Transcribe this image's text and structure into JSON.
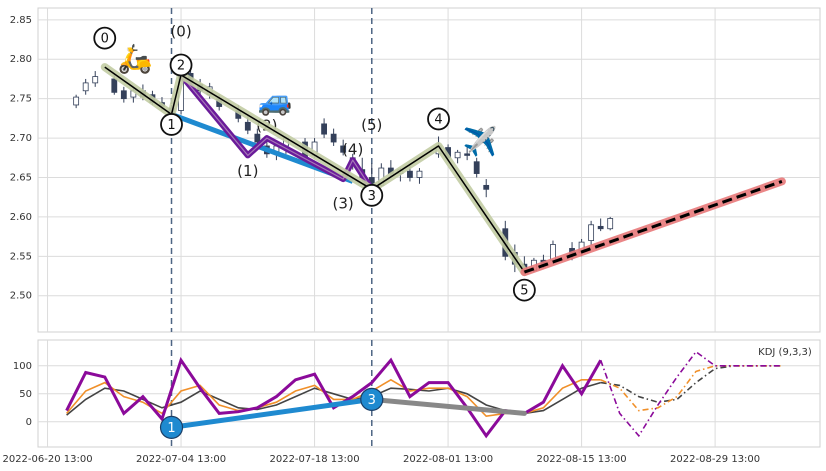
{
  "chart_data": [
    {
      "type": "candlestick",
      "x": [
        "2022-06-23",
        "2022-06-24",
        "2022-06-25",
        "2022-06-27",
        "2022-06-28",
        "2022-06-29",
        "2022-06-30",
        "2022-07-01",
        "2022-07-02",
        "2022-07-03",
        "2022-07-04",
        "2022-07-05",
        "2022-07-06",
        "2022-07-07",
        "2022-07-08",
        "2022-07-10",
        "2022-07-11",
        "2022-07-12",
        "2022-07-13",
        "2022-07-14",
        "2022-07-15",
        "2022-07-17",
        "2022-07-18",
        "2022-07-19",
        "2022-07-20",
        "2022-07-21",
        "2022-07-22",
        "2022-07-23",
        "2022-07-24",
        "2022-07-25",
        "2022-07-26",
        "2022-07-27",
        "2022-07-28",
        "2022-07-29",
        "2022-07-31",
        "2022-08-01",
        "2022-08-02",
        "2022-08-03",
        "2022-08-04",
        "2022-08-05",
        "2022-08-07",
        "2022-08-08",
        "2022-08-09",
        "2022-08-10",
        "2022-08-11",
        "2022-08-12",
        "2022-08-14",
        "2022-08-15",
        "2022-08-16",
        "2022-08-17",
        "2022-08-18"
      ],
      "open": [
        2.742,
        2.76,
        2.77,
        2.775,
        2.76,
        2.752,
        2.76,
        2.755,
        2.745,
        2.738,
        2.735,
        2.782,
        2.768,
        2.755,
        2.75,
        2.735,
        2.72,
        2.705,
        2.69,
        2.68,
        2.69,
        2.695,
        2.678,
        2.718,
        2.705,
        2.69,
        2.675,
        2.66,
        2.65,
        2.64,
        2.662,
        2.655,
        2.658,
        2.65,
        2.68,
        2.688,
        2.675,
        2.68,
        2.67,
        2.64,
        2.585,
        2.555,
        2.54,
        2.532,
        2.545,
        2.545,
        2.56,
        2.555,
        2.57,
        2.588,
        2.585
      ],
      "high": [
        2.755,
        2.775,
        2.785,
        2.782,
        2.765,
        2.765,
        2.768,
        2.76,
        2.752,
        2.742,
        2.795,
        2.79,
        2.775,
        2.77,
        2.755,
        2.742,
        2.728,
        2.712,
        2.7,
        2.695,
        2.702,
        2.7,
        2.7,
        2.725,
        2.712,
        2.698,
        2.68,
        2.675,
        2.668,
        2.668,
        2.672,
        2.662,
        2.665,
        2.662,
        2.702,
        2.692,
        2.685,
        2.69,
        2.675,
        2.648,
        2.595,
        2.565,
        2.55,
        2.548,
        2.552,
        2.57,
        2.568,
        2.572,
        2.595,
        2.598,
        2.6
      ],
      "low": [
        2.738,
        2.755,
        2.765,
        2.755,
        2.745,
        2.745,
        2.748,
        2.742,
        2.735,
        2.725,
        2.73,
        2.765,
        2.755,
        2.75,
        2.735,
        2.72,
        2.705,
        2.69,
        2.675,
        2.672,
        2.68,
        2.672,
        2.675,
        2.7,
        2.69,
        2.678,
        2.66,
        2.645,
        2.632,
        2.638,
        2.65,
        2.645,
        2.645,
        2.642,
        2.675,
        2.672,
        2.668,
        2.672,
        2.65,
        2.625,
        2.545,
        2.53,
        2.525,
        2.53,
        2.535,
        2.54,
        2.545,
        2.55,
        2.565,
        2.582,
        2.583
      ],
      "close": [
        2.752,
        2.77,
        2.778,
        2.758,
        2.75,
        2.76,
        2.752,
        2.745,
        2.74,
        2.73,
        2.785,
        2.77,
        2.76,
        2.765,
        2.74,
        2.725,
        2.71,
        2.695,
        2.68,
        2.69,
        2.7,
        2.675,
        2.695,
        2.705,
        2.695,
        2.682,
        2.665,
        2.65,
        2.64,
        2.662,
        2.655,
        2.66,
        2.65,
        2.658,
        2.69,
        2.675,
        2.682,
        2.678,
        2.655,
        2.635,
        2.55,
        2.54,
        2.532,
        2.545,
        2.54,
        2.565,
        2.552,
        2.568,
        2.59,
        2.585,
        2.598
      ],
      "up_color": "#ffffff",
      "down_color": "#34405a",
      "xlim": [
        "2022-06-19 13:00",
        "2022-09-09 13:00"
      ],
      "ylim": [
        2.454,
        2.865
      ],
      "yticks": [
        {
          "value": 2.5,
          "label": "2.50"
        },
        2.55,
        {
          "value": 2.6,
          "label": "2.60"
        },
        2.65,
        {
          "value": 2.7,
          "label": "2.70"
        },
        2.75,
        {
          "value": 2.8,
          "label": "2.80"
        },
        2.85
      ],
      "grid": true,
      "vlines": [
        "2022-07-03",
        "2022-07-24"
      ],
      "waves": [
        {
          "color": "#1f8ad0",
          "x": [
            "2022-07-03",
            "2022-07-22"
          ],
          "values": [
            2.73,
            2.645
          ]
        },
        {
          "color": "#6a1b9a",
          "x": [
            "2022-07-04",
            "2022-07-11",
            "2022-07-13",
            "2022-07-21",
            "2022-07-22",
            "2022-07-24"
          ],
          "values": [
            2.78,
            2.678,
            2.7,
            2.648,
            2.672,
            2.635
          ],
          "labels": [
            "(0)",
            "(1)",
            "(2)",
            "(3)",
            "(4)",
            "(5)"
          ]
        },
        {
          "color": "#000000",
          "glow": "#c2cca3",
          "x": [
            "2022-06-26",
            "2022-07-03",
            "2022-07-04",
            "2022-07-24",
            "2022-07-31",
            "2022-08-09"
          ],
          "values": [
            2.79,
            2.73,
            2.78,
            2.635,
            2.69,
            2.53
          ],
          "labels": [
            "0",
            "1",
            "2",
            "3",
            "4",
            "5"
          ]
        },
        {
          "color": "#000000",
          "glow": "#e8797a",
          "dashed": true,
          "x": [
            "2022-08-09",
            "2022-09-05"
          ],
          "values": [
            2.53,
            2.645
          ]
        }
      ],
      "icons": [
        "🛵",
        "🚙",
        "✈️"
      ]
    },
    {
      "type": "line",
      "annotation": "KDJ (9,3,3)",
      "xlim": [
        "2022-06-19 13:00",
        "2022-09-09 13:00"
      ],
      "xticks": [
        "2022-06-20 13:00",
        "2022-07-04 13:00",
        "2022-07-18 13:00",
        "2022-08-01 13:00",
        "2022-08-15 13:00",
        "2022-08-29 13:00"
      ],
      "ylim": [
        -45,
        146
      ],
      "yticks": [
        0,
        50,
        100
      ],
      "grid": true,
      "vlines": [
        "2022-07-03",
        "2022-07-24"
      ],
      "series": [
        {
          "color": "#444444",
          "style": "solid",
          "x": [
            "2022-06-22",
            "2022-06-24",
            "2022-06-26",
            "2022-06-28",
            "2022-06-30",
            "2022-07-02",
            "2022-07-04",
            "2022-07-06",
            "2022-07-08",
            "2022-07-10",
            "2022-07-12",
            "2022-07-14",
            "2022-07-16",
            "2022-07-18",
            "2022-07-20",
            "2022-07-22",
            "2022-07-24",
            "2022-07-26",
            "2022-07-28",
            "2022-07-30",
            "2022-08-01",
            "2022-08-03",
            "2022-08-05",
            "2022-08-07",
            "2022-08-09",
            "2022-08-11",
            "2022-08-13",
            "2022-08-15",
            "2022-08-17"
          ],
          "values": [
            12,
            40,
            60,
            55,
            40,
            25,
            35,
            55,
            40,
            25,
            22,
            30,
            45,
            60,
            50,
            40,
            45,
            60,
            58,
            55,
            60,
            50,
            30,
            20,
            15,
            20,
            40,
            60,
            70
          ]
        },
        {
          "color": "#f0902a",
          "style": "solid",
          "x": [
            "2022-06-22",
            "2022-06-24",
            "2022-06-26",
            "2022-06-28",
            "2022-06-30",
            "2022-07-02",
            "2022-07-04",
            "2022-07-06",
            "2022-07-08",
            "2022-07-10",
            "2022-07-12",
            "2022-07-14",
            "2022-07-16",
            "2022-07-18",
            "2022-07-20",
            "2022-07-22",
            "2022-07-24",
            "2022-07-26",
            "2022-07-28",
            "2022-07-30",
            "2022-08-01",
            "2022-08-03",
            "2022-08-05",
            "2022-08-07",
            "2022-08-09",
            "2022-08-11",
            "2022-08-13",
            "2022-08-15",
            "2022-08-17"
          ],
          "values": [
            15,
            55,
            70,
            45,
            35,
            15,
            55,
            65,
            30,
            20,
            25,
            35,
            55,
            65,
            40,
            40,
            55,
            75,
            55,
            60,
            60,
            45,
            10,
            15,
            15,
            25,
            60,
            75,
            75
          ]
        },
        {
          "color": "#8b0a9a",
          "style": "solid",
          "width": 3,
          "x": [
            "2022-06-22",
            "2022-06-24",
            "2022-06-26",
            "2022-06-28",
            "2022-06-30",
            "2022-07-02",
            "2022-07-04",
            "2022-07-06",
            "2022-07-08",
            "2022-07-10",
            "2022-07-12",
            "2022-07-14",
            "2022-07-16",
            "2022-07-18",
            "2022-07-20",
            "2022-07-22",
            "2022-07-24",
            "2022-07-26",
            "2022-07-28",
            "2022-07-30",
            "2022-08-01",
            "2022-08-03",
            "2022-08-05",
            "2022-08-07",
            "2022-08-09",
            "2022-08-11",
            "2022-08-13",
            "2022-08-15",
            "2022-08-17"
          ],
          "values": [
            20,
            88,
            80,
            15,
            45,
            5,
            110,
            60,
            15,
            18,
            25,
            45,
            75,
            85,
            25,
            45,
            70,
            110,
            45,
            70,
            70,
            25,
            -25,
            20,
            15,
            35,
            100,
            50,
            110
          ]
        },
        {
          "color": "#444444",
          "style": "dashdot",
          "x": [
            "2022-08-17",
            "2022-08-19",
            "2022-08-21",
            "2022-08-23",
            "2022-08-25",
            "2022-08-27",
            "2022-08-29",
            "2022-08-31",
            "2022-09-02",
            "2022-09-05"
          ],
          "values": [
            70,
            65,
            45,
            35,
            40,
            70,
            95,
            100,
            100,
            100
          ]
        },
        {
          "color": "#f0902a",
          "style": "dashdot",
          "x": [
            "2022-08-17",
            "2022-08-19",
            "2022-08-21",
            "2022-08-23",
            "2022-08-25",
            "2022-08-27",
            "2022-08-29",
            "2022-08-31",
            "2022-09-02",
            "2022-09-05"
          ],
          "values": [
            75,
            60,
            20,
            25,
            45,
            90,
            100,
            100,
            100,
            100
          ]
        },
        {
          "color": "#8b0a9a",
          "style": "dashdot",
          "x": [
            "2022-08-17",
            "2022-08-19",
            "2022-08-21",
            "2022-08-23",
            "2022-08-25",
            "2022-08-27",
            "2022-08-29",
            "2022-08-31",
            "2022-09-02",
            "2022-09-05"
          ],
          "values": [
            110,
            15,
            -25,
            30,
            80,
            125,
            100,
            100,
            100,
            100
          ]
        }
      ],
      "waves": [
        {
          "color": "#1f8ad0",
          "x": [
            "2022-07-03",
            "2022-07-24"
          ],
          "values": [
            -10,
            40
          ],
          "labels": [
            "1",
            "3"
          ]
        },
        {
          "color": "#888888",
          "x": [
            "2022-07-24",
            "2022-08-09"
          ],
          "values": [
            40,
            15
          ]
        }
      ]
    }
  ]
}
